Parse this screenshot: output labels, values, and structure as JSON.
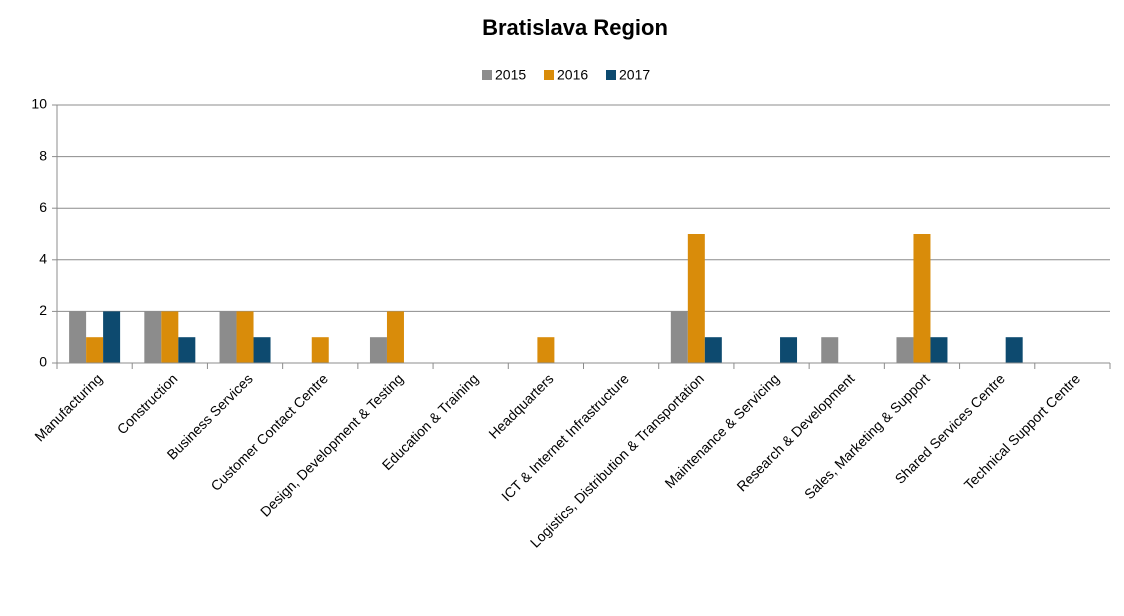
{
  "chart_data": {
    "type": "bar",
    "title": "Bratislava Region",
    "categories": [
      "Manufacturing",
      "Construction",
      "Business Services",
      "Customer Contact Centre",
      "Design, Development & Testing",
      "Education & Training",
      "Headquarters",
      "ICT & Internet Infrastructure",
      "Logistics, Distribution & Transportation",
      "Maintenance & Servicing",
      "Research & Development",
      "Sales, Marketing & Support",
      "Shared Services Centre",
      "Technical Support Centre"
    ],
    "series": [
      {
        "name": "2015",
        "color": "#8c8c8c",
        "values": [
          2,
          2,
          2,
          0,
          1,
          0,
          0,
          0,
          2,
          0,
          1,
          1,
          0,
          0
        ]
      },
      {
        "name": "2016",
        "color": "#d98c0a",
        "values": [
          1,
          2,
          2,
          1,
          2,
          0,
          1,
          0,
          5,
          0,
          0,
          5,
          0,
          0
        ]
      },
      {
        "name": "2017",
        "color": "#0d4a6f",
        "values": [
          2,
          1,
          1,
          0,
          0,
          0,
          0,
          0,
          1,
          1,
          0,
          1,
          1,
          0
        ]
      }
    ],
    "ylim": [
      0,
      10
    ],
    "yticks": [
      0,
      2,
      4,
      6,
      8,
      10
    ],
    "grid": true,
    "legend": "top"
  }
}
